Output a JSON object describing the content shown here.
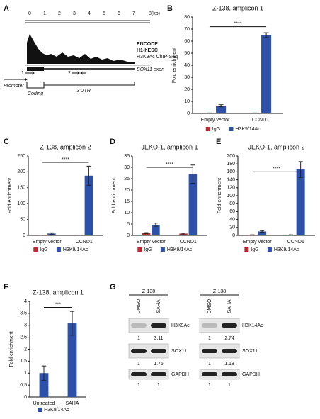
{
  "panel_a": {
    "panel": "A",
    "scale_ticks": [
      "0",
      "1",
      "2",
      "3",
      "4",
      "5",
      "6",
      "7",
      "8(kb)"
    ],
    "track_labels": [
      "ENCODE",
      "H1-hESC",
      "H3K9Ac ChIP-Seq"
    ],
    "exon_label": "SOX11 exon",
    "primers": [
      "1",
      "2"
    ],
    "regions": [
      "Promoter",
      "Coding",
      "3'UTR"
    ]
  },
  "chart_data": [
    {
      "type": "bar",
      "panel": "B",
      "title": "Z-138, amplicon 1",
      "y_label": "Fold enrichment",
      "categories": [
        "Empty vector",
        "CCND1"
      ],
      "ylim": [
        0,
        80
      ],
      "yticks": [
        0,
        10,
        20,
        30,
        40,
        50,
        60,
        70,
        80
      ],
      "series": [
        {
          "name": "IgG",
          "color": "#c0272d",
          "values": [
            0.3,
            0.3
          ],
          "errors": [
            0.1,
            0.1
          ]
        },
        {
          "name": "H3K9/14Ac",
          "color": "#2d50a8",
          "values": [
            6.5,
            65
          ],
          "errors": [
            1,
            2
          ]
        }
      ],
      "annotations": [
        {
          "text": "****",
          "y": 72
        }
      ]
    },
    {
      "type": "bar",
      "panel": "C",
      "title": "Z-138, amplicon 2",
      "y_label": "Fold enrichment",
      "categories": [
        "Empty vector",
        "CCND1"
      ],
      "ylim": [
        0,
        250
      ],
      "yticks": [
        0,
        50,
        100,
        150,
        200,
        250
      ],
      "series": [
        {
          "name": "IgG",
          "color": "#c0272d",
          "values": [
            0.5,
            0.5
          ],
          "errors": [
            0.2,
            0.2
          ]
        },
        {
          "name": "H3K9/14Ac",
          "color": "#2d50a8",
          "values": [
            6,
            188
          ],
          "errors": [
            2,
            30
          ]
        }
      ],
      "annotations": [
        {
          "text": "****",
          "y": 230
        }
      ]
    },
    {
      "type": "bar",
      "panel": "D",
      "title": "JEKO-1, amplicon 1",
      "y_label": "Fold enrichment",
      "categories": [
        "Empty vector",
        "CCND1"
      ],
      "ylim": [
        0,
        35
      ],
      "yticks": [
        0,
        5,
        10,
        15,
        20,
        25,
        30,
        35
      ],
      "series": [
        {
          "name": "IgG",
          "color": "#c0272d",
          "values": [
            1,
            0.8
          ],
          "errors": [
            0.2,
            0.2
          ]
        },
        {
          "name": "H3K9/14Ac",
          "color": "#2d50a8",
          "values": [
            4.7,
            27
          ],
          "errors": [
            0.7,
            4
          ]
        }
      ],
      "annotations": [
        {
          "text": "****",
          "y": 30
        }
      ]
    },
    {
      "type": "bar",
      "panel": "E",
      "title": "JEKO-1, amplicon 2",
      "y_label": "Fold enrichment",
      "categories": [
        "Empty vector",
        "CCND1"
      ],
      "ylim": [
        0,
        200
      ],
      "yticks": [
        0,
        20,
        40,
        60,
        80,
        100,
        120,
        140,
        160,
        180,
        200
      ],
      "series": [
        {
          "name": "IgG",
          "color": "#c0272d",
          "values": [
            1,
            1
          ],
          "errors": [
            0.5,
            0.5
          ]
        },
        {
          "name": "H3K9/14Ac",
          "color": "#2d50a8",
          "values": [
            10,
            166
          ],
          "errors": [
            2,
            20
          ]
        }
      ],
      "annotations": [
        {
          "text": "****",
          "y": 160
        }
      ]
    },
    {
      "type": "bar",
      "panel": "F",
      "title": "Z-138, amplicon 1",
      "y_label": "Fold enrichment",
      "categories": [
        "Untreated",
        "SAHA"
      ],
      "ylim": [
        0,
        4
      ],
      "yticks": [
        0,
        0.5,
        1,
        1.5,
        2,
        2.5,
        3,
        3.5,
        4
      ],
      "series": [
        {
          "name": "H3K9/14Ac",
          "color": "#2d50a8",
          "values": [
            1.0,
            3.08
          ],
          "errors": [
            0.3,
            0.5
          ]
        }
      ],
      "annotations": [
        {
          "text": "***",
          "y": 3.75
        }
      ]
    }
  ],
  "panel_g": {
    "panel": "G",
    "groups": [
      {
        "cell_line": "Z-138",
        "lanes": [
          "DMSO",
          "SAHA"
        ],
        "blots": [
          {
            "label": "H3K9Ac",
            "values": [
              "1",
              "3.11"
            ]
          },
          {
            "label": "SOX11",
            "values": [
              "1",
              "1.75"
            ]
          },
          {
            "label": "GAPDH",
            "values": [
              "1",
              "1"
            ]
          }
        ]
      },
      {
        "cell_line": "Z-138",
        "lanes": [
          "DMSO",
          "SAHA"
        ],
        "blots": [
          {
            "label": "H3K14Ac",
            "values": [
              "1",
              "2.74"
            ]
          },
          {
            "label": "SOX11",
            "values": [
              "1",
              "1.18"
            ]
          },
          {
            "label": "GAPDH",
            "values": [
              "1",
              "1"
            ]
          }
        ]
      }
    ]
  }
}
